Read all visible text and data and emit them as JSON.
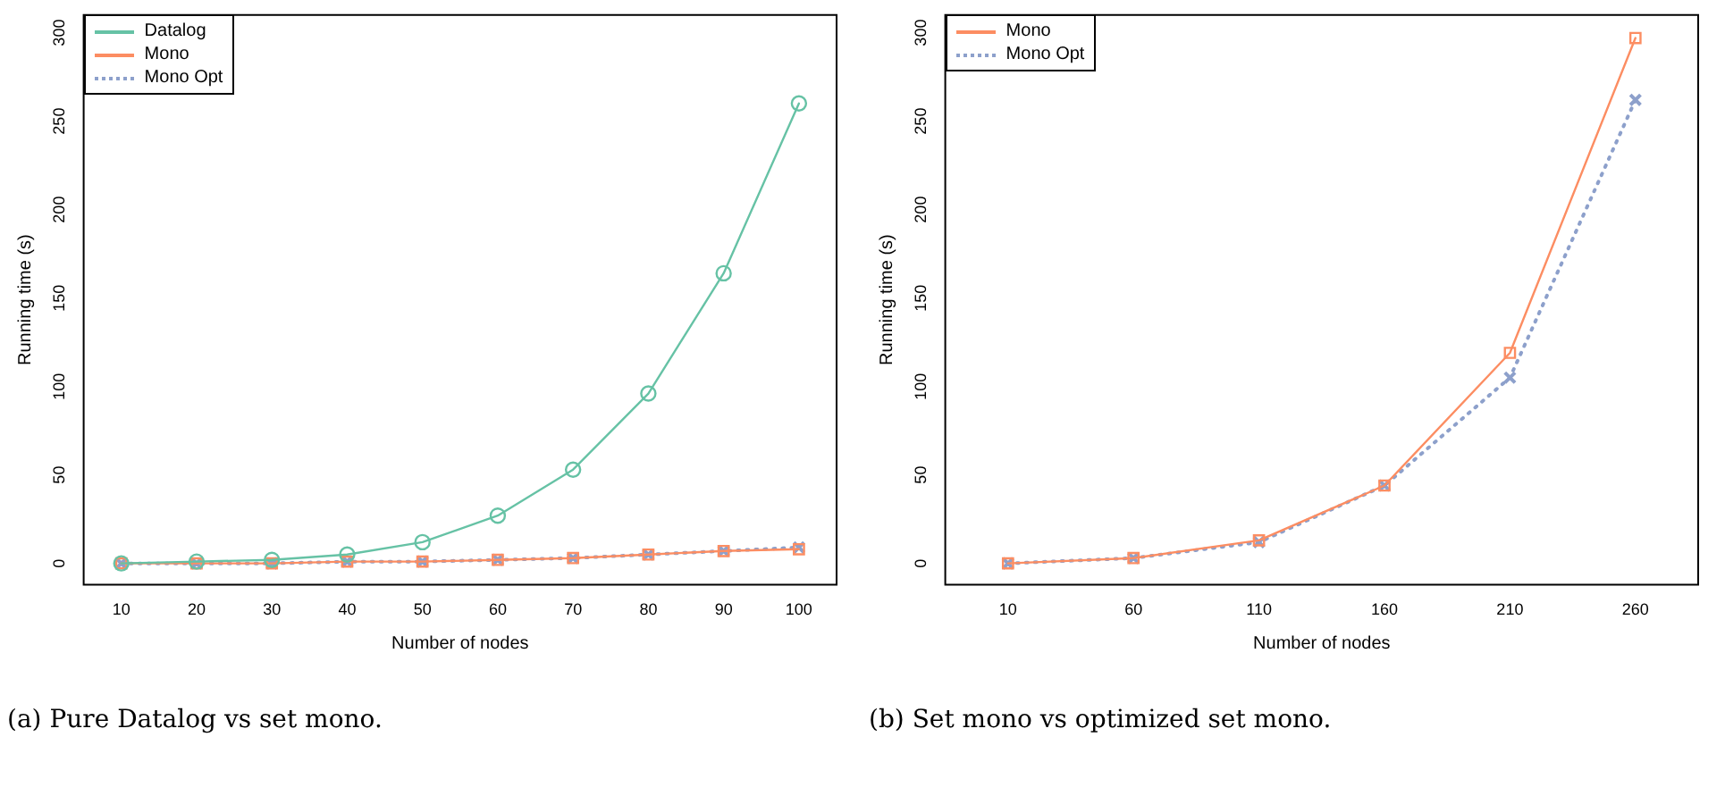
{
  "chart_data": [
    {
      "type": "line",
      "xlabel": "Number of nodes",
      "ylabel": "Running time (s)",
      "categories": [
        "10",
        "20",
        "30",
        "40",
        "50",
        "60",
        "70",
        "80",
        "90",
        "100"
      ],
      "ylim": [
        -12,
        310
      ],
      "yticks": [
        0,
        50,
        100,
        150,
        200,
        250,
        300
      ],
      "grid": false,
      "legend": "top left",
      "annotations": [
        "(a) Pure Datalog vs set mono."
      ],
      "series": [
        {
          "name": "Datalog",
          "color": "#66c2a5",
          "marker": "circle",
          "line_style": "solid",
          "values": [
            0,
            1,
            2,
            5,
            12,
            27,
            53,
            96,
            164,
            260
          ]
        },
        {
          "name": "Mono",
          "color": "#fc8d62",
          "marker": "square",
          "line_style": "solid",
          "values": [
            0,
            0,
            0,
            1,
            1,
            2,
            3,
            5,
            7,
            8
          ]
        },
        {
          "name": "Mono Opt",
          "color": "#8da0cb",
          "marker": "cross",
          "line_style": "dotted",
          "values": [
            0,
            0,
            0,
            1,
            1,
            2,
            3,
            5,
            7,
            9
          ]
        }
      ]
    },
    {
      "type": "line",
      "xlabel": "Number of nodes",
      "ylabel": "Running time (s)",
      "categories": [
        "10",
        "60",
        "110",
        "160",
        "210",
        "260"
      ],
      "ylim": [
        -12,
        310
      ],
      "yticks": [
        0,
        50,
        100,
        150,
        200,
        250,
        300
      ],
      "grid": false,
      "legend": "top left",
      "annotations": [
        "(b) Set mono vs optimized set mono."
      ],
      "series": [
        {
          "name": "Mono",
          "color": "#fc8d62",
          "marker": "square",
          "line_style": "solid",
          "values": [
            0,
            3,
            13,
            44,
            119,
            297
          ]
        },
        {
          "name": "Mono Opt",
          "color": "#8da0cb",
          "marker": "cross",
          "line_style": "dotted",
          "values": [
            0,
            3,
            12,
            44,
            105,
            262
          ]
        }
      ]
    }
  ]
}
